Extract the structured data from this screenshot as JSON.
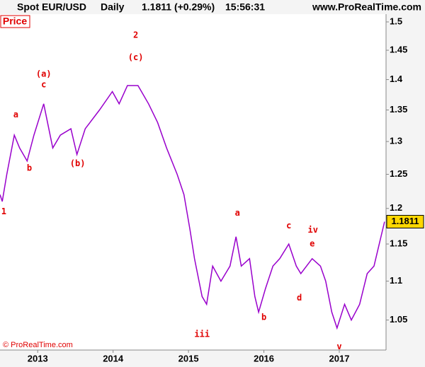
{
  "header": {
    "symbol": "Spot EUR/USD",
    "timeframe": "Daily",
    "quote": "1.1811 (+0.29%)",
    "time": "15:56:31",
    "site": "www.ProRealTime.com"
  },
  "chart_data": {
    "type": "line",
    "panel_label": "Price",
    "footer": "© ProRealTime.com",
    "log_scale": true,
    "color": "#9900cc",
    "x": [
      2012.5,
      2012.53,
      2012.59,
      2012.69,
      2012.76,
      2012.86,
      2012.95,
      2013.08,
      2013.2,
      2013.3,
      2013.44,
      2013.52,
      2013.63,
      2013.82,
      2013.99,
      2014.08,
      2014.19,
      2014.33,
      2014.47,
      2014.59,
      2014.71,
      2014.85,
      2014.94,
      2015.02,
      2015.08,
      2015.18,
      2015.24,
      2015.32,
      2015.43,
      2015.55,
      2015.63,
      2015.7,
      2015.81,
      2015.88,
      2015.93,
      2016.02,
      2016.12,
      2016.21,
      2016.33,
      2016.43,
      2016.49,
      2016.64,
      2016.75,
      2016.82,
      2016.9,
      2016.97,
      2017.07,
      2017.16,
      2017.27,
      2017.37,
      2017.46,
      2017.53,
      2017.6
    ],
    "series": [
      {
        "name": "EUR/USD",
        "color": "#9900cc",
        "values": [
          1.22,
          1.21,
          1.25,
          1.31,
          1.29,
          1.27,
          1.31,
          1.36,
          1.29,
          1.31,
          1.32,
          1.28,
          1.32,
          1.35,
          1.38,
          1.36,
          1.39,
          1.39,
          1.36,
          1.33,
          1.29,
          1.25,
          1.22,
          1.17,
          1.13,
          1.08,
          1.07,
          1.12,
          1.1,
          1.12,
          1.16,
          1.12,
          1.13,
          1.08,
          1.06,
          1.09,
          1.12,
          1.13,
          1.15,
          1.12,
          1.11,
          1.13,
          1.12,
          1.1,
          1.06,
          1.04,
          1.07,
          1.05,
          1.07,
          1.11,
          1.12,
          1.15,
          1.1811
        ]
      }
    ],
    "last_price": 1.1811,
    "xlim": [
      2012.5,
      2017.62
    ],
    "xticks": [
      2013,
      2014,
      2015,
      2016,
      2017
    ],
    "ylim": [
      1.013,
      1.514
    ],
    "yticks": [
      1.05,
      1.1,
      1.15,
      1.2,
      1.25,
      1.3,
      1.35,
      1.4,
      1.45,
      1.5
    ],
    "annotations": [
      {
        "text": "1",
        "x": 2012.55,
        "y": 1.195
      },
      {
        "text": "a",
        "x": 2012.71,
        "y": 1.342
      },
      {
        "text": "b",
        "x": 2012.89,
        "y": 1.259
      },
      {
        "text": "(a)",
        "x": 2013.08,
        "y": 1.409
      },
      {
        "text": "c",
        "x": 2013.08,
        "y": 1.391
      },
      {
        "text": "(b)",
        "x": 2013.53,
        "y": 1.266
      },
      {
        "text": "2",
        "x": 2014.3,
        "y": 1.476
      },
      {
        "text": "(c)",
        "x": 2014.3,
        "y": 1.437
      },
      {
        "text": "iii",
        "x": 2015.18,
        "y": 1.032
      },
      {
        "text": "a",
        "x": 2015.65,
        "y": 1.193
      },
      {
        "text": "b",
        "x": 2016.0,
        "y": 1.053
      },
      {
        "text": "c",
        "x": 2016.33,
        "y": 1.175
      },
      {
        "text": "iv",
        "x": 2016.65,
        "y": 1.169
      },
      {
        "text": "e",
        "x": 2016.64,
        "y": 1.15
      },
      {
        "text": "d",
        "x": 2016.47,
        "y": 1.078
      },
      {
        "text": "v",
        "x": 2017.0,
        "y": 1.017
      }
    ]
  }
}
